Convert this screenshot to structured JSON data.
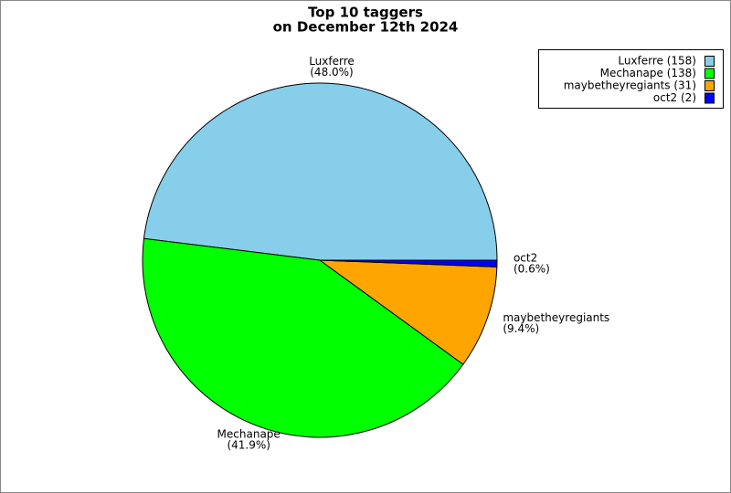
{
  "chart_data": {
    "type": "pie",
    "title": "Top 10 taggers",
    "subtitle": "on December 12th 2024",
    "categories": [
      "Luxferre",
      "Mechanape",
      "maybetheyregiants",
      "oct2"
    ],
    "values": [
      48.0,
      41.9,
      9.4,
      0.6
    ],
    "value_labels": [
      "(48.0%)",
      "(41.9%)",
      "(9.4%)",
      "(0.6%)"
    ],
    "legend_labels": [
      "Luxferre (158)",
      "Mechanape (138)",
      "maybetheyregiants (31)",
      "oct2 (2)"
    ],
    "colors": [
      "#87ceeb",
      "#00ff00",
      "#ffa500",
      "#0000ff"
    ],
    "legend": "upper right"
  }
}
